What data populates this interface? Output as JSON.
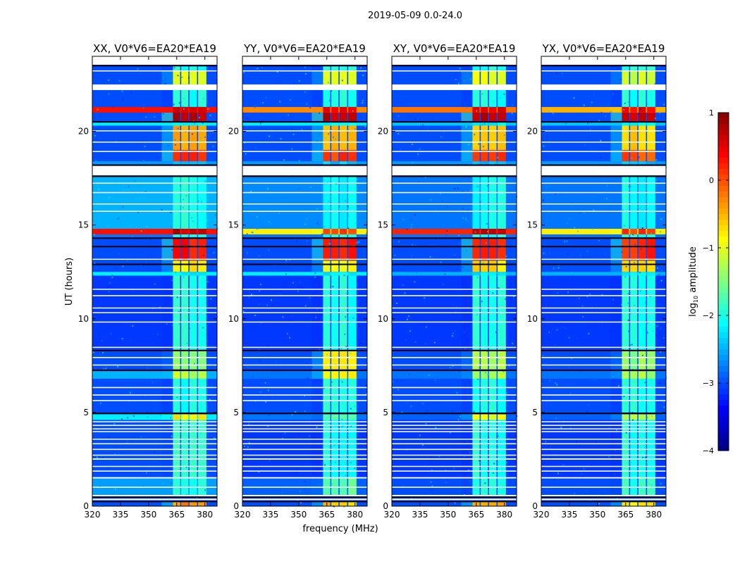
{
  "figure": {
    "suptitle": "2019-05-09 0.0-24.0",
    "xlabel": "frequency (MHz)",
    "ylabel": "UT (hours)",
    "colorbar": {
      "label_main": "log",
      "label_sub": "10",
      "label_rest": " amplitude",
      "range": [
        -4,
        1
      ],
      "ticks": [
        1,
        0,
        -1,
        -2,
        -3,
        -4
      ],
      "tick_labels": [
        "1",
        "0",
        "−1",
        "−2",
        "−3",
        "−4"
      ],
      "colormap": "jet"
    }
  },
  "chart_data": {
    "type": "heatmap",
    "description_axes": "time (UT hours) vs frequency (MHz), colour = log10 amplitude",
    "xlim": [
      320,
      386.5
    ],
    "ylim": [
      0,
      24
    ],
    "xticks": [
      320,
      335,
      350,
      365,
      380
    ],
    "yticks": [
      0,
      5,
      10,
      15,
      20
    ],
    "band_edges_mhz": [
      [
        363,
        366.8
      ],
      [
        367.4,
        371.2
      ],
      [
        371.8,
        375.8
      ],
      [
        376.4,
        380.8
      ]
    ],
    "flagged_white_hours": [
      [
        0.32,
        0.4
      ],
      [
        0.52,
        0.6
      ],
      [
        0.98,
        1.04
      ],
      [
        1.48,
        1.55
      ],
      [
        1.84,
        1.9
      ],
      [
        2.1,
        2.15
      ],
      [
        2.48,
        2.55
      ],
      [
        2.7,
        2.75
      ],
      [
        3.0,
        3.06
      ],
      [
        3.3,
        3.36
      ],
      [
        3.55,
        3.6
      ],
      [
        3.95,
        4.0
      ],
      [
        4.1,
        4.15
      ],
      [
        4.28,
        4.34
      ],
      [
        4.48,
        4.53
      ],
      [
        5.6,
        5.66
      ],
      [
        5.9,
        5.96
      ],
      [
        6.3,
        6.36
      ],
      [
        7.5,
        7.56
      ],
      [
        7.9,
        7.96
      ],
      [
        8.45,
        8.5
      ],
      [
        9.8,
        9.85
      ],
      [
        10.3,
        10.35
      ],
      [
        10.55,
        10.6
      ],
      [
        11.2,
        11.26
      ],
      [
        11.55,
        11.6
      ],
      [
        13.15,
        13.2
      ],
      [
        15.7,
        15.76
      ],
      [
        16.1,
        16.15
      ],
      [
        16.7,
        16.76
      ],
      [
        17.2,
        17.26
      ],
      [
        17.65,
        18.15
      ],
      [
        18.9,
        18.95
      ],
      [
        19.4,
        19.45
      ],
      [
        20.0,
        20.05
      ],
      [
        22.2,
        22.5
      ],
      [
        23.2,
        23.25
      ],
      [
        23.55,
        24.0
      ]
    ],
    "flagged_black_hours": [
      0.25,
      0.48,
      4.95,
      7.25,
      8.3,
      12.9,
      13.85,
      14.3,
      17.6,
      18.2,
      20.5,
      23.5
    ],
    "panels": [
      {
        "title": "XX, V0*V6=EA20*EA19",
        "segments": [
          {
            "t": [
              0,
              0.25
            ],
            "bg": -3.0,
            "band": -0.3
          },
          {
            "t": [
              0.6,
              1.5
            ],
            "bg": -2.6,
            "band": -2.0
          },
          {
            "t": [
              1.5,
              4.6
            ],
            "bg": -3.0,
            "band": -1.9
          },
          {
            "t": [
              4.6,
              4.9
            ],
            "bg": -2.2,
            "band": -0.8
          },
          {
            "t": [
              5.0,
              6.8
            ],
            "bg": -3.0,
            "band": -2.0
          },
          {
            "t": [
              6.8,
              7.2
            ],
            "bg": -2.5,
            "band": -1.2
          },
          {
            "t": [
              7.3,
              8.3
            ],
            "bg": -3.0,
            "band": -1.5
          },
          {
            "t": [
              8.35,
              12.3
            ],
            "bg": -3.1,
            "band": -2.0
          },
          {
            "t": [
              12.3,
              12.5
            ],
            "bg": -2.2,
            "band": -2.2
          },
          {
            "t": [
              12.5,
              13.1
            ],
            "bg": -3.0,
            "band": -0.8
          },
          {
            "t": [
              13.1,
              14.3
            ],
            "bg": -3.0,
            "band": 0.3
          },
          {
            "t": [
              14.35,
              14.5
            ],
            "bg": -2.8,
            "band": -2.0
          },
          {
            "t": [
              14.5,
              14.8
            ],
            "bg": 0.3,
            "band": 0.7
          },
          {
            "t": [
              14.8,
              17.6
            ],
            "bg": -2.5,
            "band": -2.0
          },
          {
            "t": [
              18.2,
              18.4
            ],
            "bg": -2.6,
            "band": -2.4
          },
          {
            "t": [
              18.4,
              19.0
            ],
            "bg": -3.0,
            "band": 0.2
          },
          {
            "t": [
              19.0,
              20.3
            ],
            "bg": -3.0,
            "band": -0.5
          },
          {
            "t": [
              20.3,
              20.5
            ],
            "bg": -2.2,
            "band": -2.2
          },
          {
            "t": [
              20.55,
              21.0
            ],
            "bg": -3.0,
            "band": 0.7
          },
          {
            "t": [
              21.0,
              21.3
            ],
            "bg": 0.3,
            "band": 0.6
          },
          {
            "t": [
              21.3,
              22.2
            ],
            "bg": -3.0,
            "band": -2.0
          },
          {
            "t": [
              22.5,
              23.2
            ],
            "bg": -3.0,
            "band": -0.9
          },
          {
            "t": [
              23.25,
              23.5
            ],
            "bg": -3.0,
            "band": -2.0
          }
        ]
      },
      {
        "title": "YY, V0*V6=EA20*EA19",
        "segments": [
          {
            "t": [
              0,
              0.25
            ],
            "bg": -3.0,
            "band": -0.6
          },
          {
            "t": [
              0.6,
              1.5
            ],
            "bg": -2.9,
            "band": -1.6
          },
          {
            "t": [
              1.5,
              4.6
            ],
            "bg": -3.1,
            "band": -2.0
          },
          {
            "t": [
              4.6,
              4.9
            ],
            "bg": -2.8,
            "band": -1.8
          },
          {
            "t": [
              5.0,
              6.8
            ],
            "bg": -3.0,
            "band": -2.0
          },
          {
            "t": [
              6.8,
              7.2
            ],
            "bg": -2.8,
            "band": -0.8
          },
          {
            "t": [
              7.3,
              8.3
            ],
            "bg": -3.0,
            "band": -0.8
          },
          {
            "t": [
              8.35,
              12.3
            ],
            "bg": -3.1,
            "band": -2.0
          },
          {
            "t": [
              12.3,
              12.5
            ],
            "bg": -2.2,
            "band": -2.2
          },
          {
            "t": [
              12.5,
              13.1
            ],
            "bg": -3.0,
            "band": -0.8
          },
          {
            "t": [
              13.1,
              14.3
            ],
            "bg": -3.0,
            "band": 0.2
          },
          {
            "t": [
              14.35,
              14.5
            ],
            "bg": -2.8,
            "band": -2.0
          },
          {
            "t": [
              14.5,
              14.8
            ],
            "bg": -0.8,
            "band": 0.1
          },
          {
            "t": [
              14.8,
              17.6
            ],
            "bg": -2.7,
            "band": -2.1
          },
          {
            "t": [
              18.2,
              18.4
            ],
            "bg": -2.6,
            "band": -2.4
          },
          {
            "t": [
              18.4,
              19.0
            ],
            "bg": -3.0,
            "band": 0.1
          },
          {
            "t": [
              19.0,
              20.3
            ],
            "bg": -3.0,
            "band": -0.5
          },
          {
            "t": [
              20.3,
              20.5
            ],
            "bg": -2.2,
            "band": -2.2
          },
          {
            "t": [
              20.55,
              21.0
            ],
            "bg": -3.0,
            "band": 0.7
          },
          {
            "t": [
              21.0,
              21.3
            ],
            "bg": -0.3,
            "band": 0.5
          },
          {
            "t": [
              21.3,
              22.2
            ],
            "bg": -3.0,
            "band": -2.0
          },
          {
            "t": [
              22.5,
              23.2
            ],
            "bg": -3.0,
            "band": -0.9
          },
          {
            "t": [
              23.25,
              23.5
            ],
            "bg": -3.0,
            "band": -2.0
          }
        ]
      },
      {
        "title": "XY, V0*V6=EA20*EA19",
        "segments": [
          {
            "t": [
              0,
              0.25
            ],
            "bg": -3.0,
            "band": -0.5
          },
          {
            "t": [
              0.6,
              1.5
            ],
            "bg": -3.0,
            "band": -1.9
          },
          {
            "t": [
              1.5,
              4.6
            ],
            "bg": -3.1,
            "band": -2.0
          },
          {
            "t": [
              4.6,
              4.9
            ],
            "bg": -2.9,
            "band": -0.9
          },
          {
            "t": [
              5.0,
              6.8
            ],
            "bg": -3.0,
            "band": -2.0
          },
          {
            "t": [
              6.8,
              7.2
            ],
            "bg": -2.8,
            "band": -1.3
          },
          {
            "t": [
              7.3,
              8.3
            ],
            "bg": -3.0,
            "band": -1.3
          },
          {
            "t": [
              8.35,
              12.3
            ],
            "bg": -3.1,
            "band": -2.0
          },
          {
            "t": [
              12.3,
              12.5
            ],
            "bg": -2.5,
            "band": -2.2
          },
          {
            "t": [
              12.5,
              13.1
            ],
            "bg": -3.0,
            "band": -0.7
          },
          {
            "t": [
              13.1,
              14.3
            ],
            "bg": -3.0,
            "band": 0.3
          },
          {
            "t": [
              14.35,
              14.5
            ],
            "bg": -2.8,
            "band": -2.0
          },
          {
            "t": [
              14.5,
              14.8
            ],
            "bg": 0.2,
            "band": 0.6
          },
          {
            "t": [
              14.8,
              17.6
            ],
            "bg": -2.8,
            "band": -2.1
          },
          {
            "t": [
              18.2,
              18.4
            ],
            "bg": -2.6,
            "band": -2.4
          },
          {
            "t": [
              18.4,
              19.0
            ],
            "bg": -3.0,
            "band": 0.1
          },
          {
            "t": [
              19.0,
              20.3
            ],
            "bg": -3.0,
            "band": -0.5
          },
          {
            "t": [
              20.3,
              20.5
            ],
            "bg": -2.4,
            "band": -2.2
          },
          {
            "t": [
              20.55,
              21.0
            ],
            "bg": -3.0,
            "band": 0.7
          },
          {
            "t": [
              21.0,
              21.3
            ],
            "bg": -0.2,
            "band": 0.5
          },
          {
            "t": [
              21.3,
              22.2
            ],
            "bg": -3.0,
            "band": -2.0
          },
          {
            "t": [
              22.5,
              23.2
            ],
            "bg": -3.0,
            "band": -1.0
          },
          {
            "t": [
              23.25,
              23.5
            ],
            "bg": -3.0,
            "band": -2.0
          }
        ]
      },
      {
        "title": "YX, V0*V6=EA20*EA19",
        "segments": [
          {
            "t": [
              0,
              0.25
            ],
            "bg": -3.0,
            "band": -0.7
          },
          {
            "t": [
              0.6,
              1.5
            ],
            "bg": -3.0,
            "band": -1.9
          },
          {
            "t": [
              1.5,
              4.6
            ],
            "bg": -3.1,
            "band": -2.0
          },
          {
            "t": [
              4.6,
              4.9
            ],
            "bg": -2.9,
            "band": -1.2
          },
          {
            "t": [
              5.0,
              6.8
            ],
            "bg": -3.0,
            "band": -2.0
          },
          {
            "t": [
              6.8,
              7.2
            ],
            "bg": -2.8,
            "band": -1.3
          },
          {
            "t": [
              7.3,
              8.3
            ],
            "bg": -3.0,
            "band": -1.4
          },
          {
            "t": [
              8.35,
              12.3
            ],
            "bg": -3.1,
            "band": -2.0
          },
          {
            "t": [
              12.3,
              12.5
            ],
            "bg": -2.5,
            "band": -2.2
          },
          {
            "t": [
              12.5,
              13.1
            ],
            "bg": -3.0,
            "band": -0.8
          },
          {
            "t": [
              13.1,
              14.3
            ],
            "bg": -3.0,
            "band": 0.2
          },
          {
            "t": [
              14.35,
              14.5
            ],
            "bg": -2.8,
            "band": -2.0
          },
          {
            "t": [
              14.5,
              14.8
            ],
            "bg": -0.8,
            "band": 0.1
          },
          {
            "t": [
              14.8,
              17.6
            ],
            "bg": -2.8,
            "band": -2.1
          },
          {
            "t": [
              18.2,
              18.4
            ],
            "bg": -2.6,
            "band": -2.4
          },
          {
            "t": [
              18.4,
              19.0
            ],
            "bg": -3.0,
            "band": 0.0
          },
          {
            "t": [
              19.0,
              20.3
            ],
            "bg": -3.0,
            "band": -0.6
          },
          {
            "t": [
              20.3,
              20.5
            ],
            "bg": -2.4,
            "band": -2.2
          },
          {
            "t": [
              20.55,
              21.0
            ],
            "bg": -3.0,
            "band": 0.6
          },
          {
            "t": [
              21.0,
              21.3
            ],
            "bg": -0.5,
            "band": 0.4
          },
          {
            "t": [
              21.3,
              22.2
            ],
            "bg": -3.0,
            "band": -2.0
          },
          {
            "t": [
              22.5,
              23.2
            ],
            "bg": -3.0,
            "band": -1.1
          },
          {
            "t": [
              23.25,
              23.5
            ],
            "bg": -3.0,
            "band": -2.0
          }
        ]
      }
    ]
  }
}
